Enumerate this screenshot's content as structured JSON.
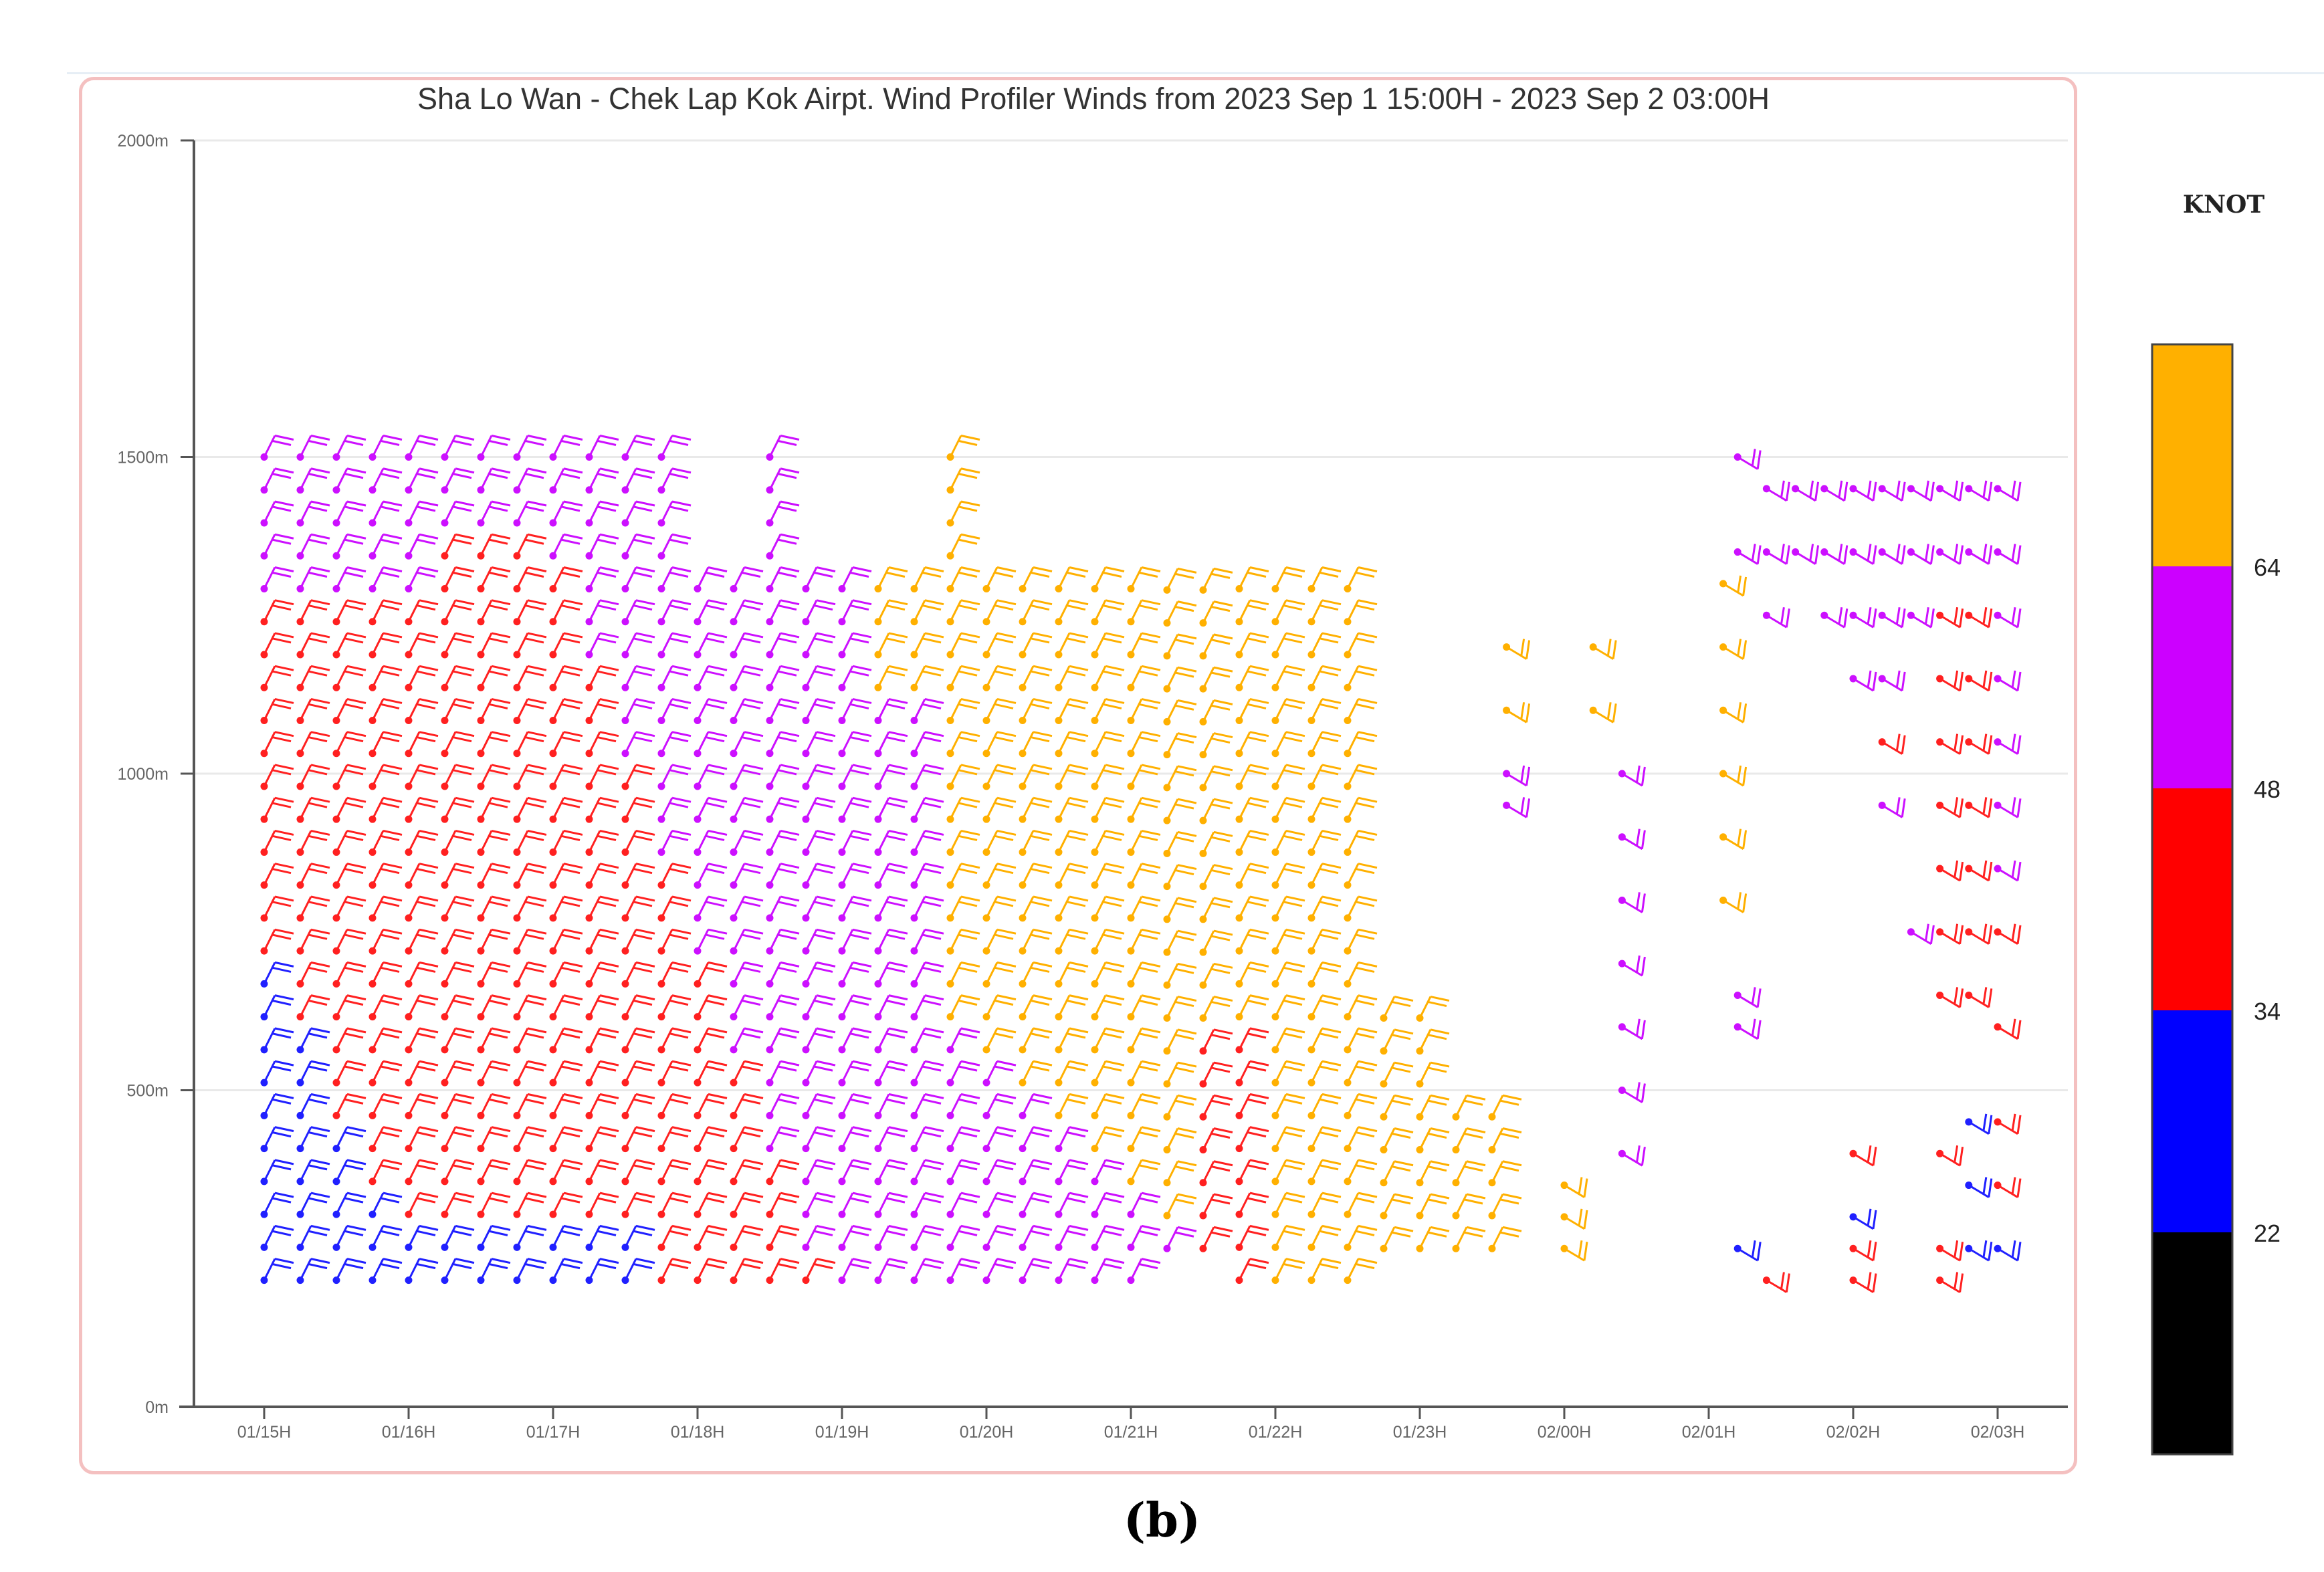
{
  "chart_data": {
    "type": "wind_barb_time_height",
    "title": "Sha Lo Wan - Chek Lap Kok Airpt. Wind Profiler Winds from 2023 Sep 1 15:00H - 2023 Sep 2 03:00H",
    "x_ticks": [
      "01/15H",
      "01/16H",
      "01/17H",
      "01/18H",
      "01/19H",
      "01/20H",
      "01/21H",
      "01/22H",
      "01/23H",
      "02/00H",
      "02/01H",
      "02/02H",
      "02/03H"
    ],
    "y_ticks": [
      "0m",
      "500m",
      "1000m",
      "1500m",
      "2000m"
    ],
    "y_values": [
      0,
      500,
      1000,
      1500,
      2000
    ],
    "ylim": [
      0,
      2000
    ],
    "grid": "horizontal",
    "colorbar": {
      "title": "KNOT",
      "position": "right",
      "tick_labels": [
        "22",
        "34",
        "48",
        "64"
      ],
      "bands": [
        {
          "range": "<22",
          "color": "#000000"
        },
        {
          "range": "22-34",
          "color": "#0000ff"
        },
        {
          "range": "34-48",
          "color": "#ff0000"
        },
        {
          "range": "48-64",
          "color": "#cc00ff"
        },
        {
          "range": ">64",
          "color": "#ffb000"
        }
      ]
    },
    "wind_field": {
      "barb_base_direction": "north-northeast",
      "columns": [
        {
          "time": 15.0,
          "bottom": 200,
          "top": 1550
        },
        {
          "time": 15.25,
          "bottom": 200,
          "top": 1550
        },
        {
          "time": 15.5,
          "bottom": 200,
          "top": 1550
        },
        {
          "time": 15.75,
          "bottom": 200,
          "top": 1550
        },
        {
          "time": 16.0,
          "bottom": 200,
          "top": 1550
        },
        {
          "time": 16.25,
          "bottom": 200,
          "top": 1550
        },
        {
          "time": 16.5,
          "bottom": 200,
          "top": 1550
        },
        {
          "time": 16.75,
          "bottom": 200,
          "top": 1550
        },
        {
          "time": 17.0,
          "bottom": 200,
          "top": 1550
        },
        {
          "time": 17.25,
          "bottom": 200,
          "top": 1550
        },
        {
          "time": 17.5,
          "bottom": 200,
          "top": 1550
        },
        {
          "time": 17.75,
          "bottom": 200,
          "top": 1550
        },
        {
          "time": 18.0,
          "bottom": 200,
          "top": 1320
        },
        {
          "time": 18.25,
          "bottom": 200,
          "top": 1320
        },
        {
          "time": 18.5,
          "bottom": 200,
          "top": 1550
        },
        {
          "time": 18.75,
          "bottom": 200,
          "top": 1320
        },
        {
          "time": 19.0,
          "bottom": 200,
          "top": 1320
        },
        {
          "time": 19.25,
          "bottom": 200,
          "top": 1320
        },
        {
          "time": 19.5,
          "bottom": 200,
          "top": 1320
        },
        {
          "time": 19.75,
          "bottom": 200,
          "top": 1550
        },
        {
          "time": 20.0,
          "bottom": 200,
          "top": 1320
        },
        {
          "time": 20.25,
          "bottom": 200,
          "top": 1320
        },
        {
          "time": 20.5,
          "bottom": 200,
          "top": 1320
        },
        {
          "time": 20.75,
          "bottom": 200,
          "top": 1320
        },
        {
          "time": 21.0,
          "bottom": 200,
          "top": 1320
        },
        {
          "time": 21.25,
          "bottom": 250,
          "top": 1300
        },
        {
          "time": 21.5,
          "bottom": 250,
          "top": 1300
        },
        {
          "time": 21.75,
          "bottom": 200,
          "top": 1300
        },
        {
          "time": 22.0,
          "bottom": 200,
          "top": 1300
        },
        {
          "time": 22.25,
          "bottom": 200,
          "top": 1300
        },
        {
          "time": 22.5,
          "bottom": 200,
          "top": 1300
        },
        {
          "time": 22.75,
          "bottom": 250,
          "top": 650
        },
        {
          "time": 23.0,
          "bottom": 250,
          "top": 650
        },
        {
          "time": 23.25,
          "bottom": 250,
          "top": 500
        },
        {
          "time": 23.5,
          "bottom": 250,
          "top": 500
        }
      ]
    }
  },
  "panel_label": "(b)"
}
